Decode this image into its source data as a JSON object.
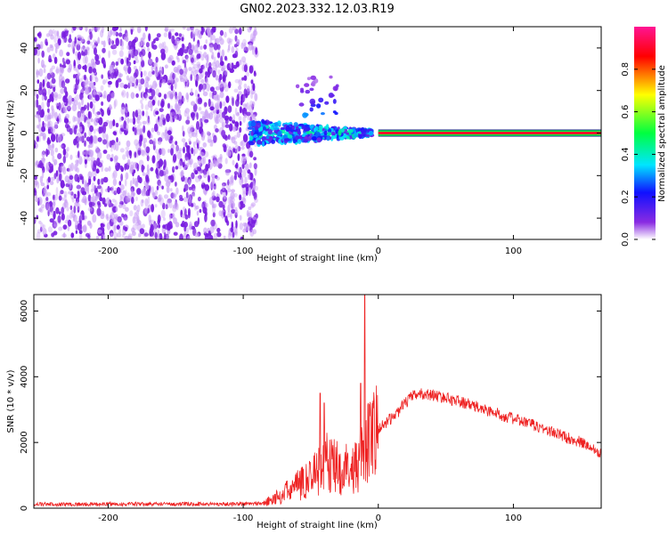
{
  "title": "GN02.2023.332.12.03.R19",
  "chart_data": [
    {
      "type": "heatmap",
      "xlabel": "Height of straight line (km)",
      "ylabel": "Frequency (Hz)",
      "xlim": [
        -255,
        165
      ],
      "ylim": [
        -50,
        50
      ],
      "x_ticks": [
        -200,
        -100,
        0,
        100
      ],
      "y_ticks": [
        -40,
        -20,
        0,
        20,
        40
      ],
      "colorbar": {
        "label": "Normalized spectral amplitude",
        "range": [
          0,
          1
        ],
        "ticks": [
          0.0,
          0.2,
          0.4,
          0.6,
          0.8
        ],
        "colormap": [
          "#ffffff",
          "#8a2be2",
          "#1010ff",
          "#00e5ff",
          "#00ff40",
          "#ffff00",
          "#ff0000",
          "#ff1493"
        ]
      },
      "regions": [
        {
          "x_range": [
            -255,
            -90
          ],
          "freq_range": [
            -50,
            50
          ],
          "amplitude": [
            0.0,
            0.12
          ],
          "note": "broadband noise"
        },
        {
          "x_range": [
            -95,
            -5
          ],
          "freq_center": 0,
          "amplitude": [
            0.1,
            0.45
          ]
        },
        {
          "x_range": [
            0,
            165
          ],
          "freq_center": 0,
          "amplitude": 0.9
        }
      ]
    },
    {
      "type": "line",
      "xlabel": "Height of straight line (km)",
      "ylabel": "SNR (10 * v/v)",
      "xlim": [
        -255,
        165
      ],
      "ylim": [
        0,
        6500
      ],
      "x_ticks": [
        -200,
        -100,
        0,
        100
      ],
      "y_ticks": [
        0,
        2000,
        4000,
        6000
      ],
      "color": "#ee2222",
      "series": [
        {
          "x": [
            -255,
            -220,
            -180,
            -140,
            -100,
            -85,
            -75,
            -65,
            -55,
            -45,
            -38,
            -30,
            -25,
            -20,
            -15,
            -10,
            -7,
            -5,
            0,
            5,
            10,
            15,
            20,
            25,
            30,
            40,
            50,
            60,
            70,
            80,
            90,
            100,
            110,
            120,
            130,
            140,
            150,
            160,
            165
          ],
          "y": [
            120,
            120,
            125,
            125,
            130,
            150,
            350,
            600,
            850,
            1200,
            1500,
            1300,
            1250,
            1350,
            1500,
            1800,
            2100,
            2200,
            2400,
            2600,
            2750,
            2950,
            3200,
            3400,
            3480,
            3450,
            3350,
            3250,
            3120,
            2980,
            2850,
            2720,
            2600,
            2450,
            2300,
            2150,
            2000,
            1800,
            1700
          ]
        }
      ],
      "spikes": [
        {
          "x": -43,
          "y": 3500
        },
        {
          "x": -40,
          "y": 3200
        },
        {
          "x": -10,
          "y": 6500
        },
        {
          "x": -13,
          "y": 3800
        }
      ]
    }
  ]
}
